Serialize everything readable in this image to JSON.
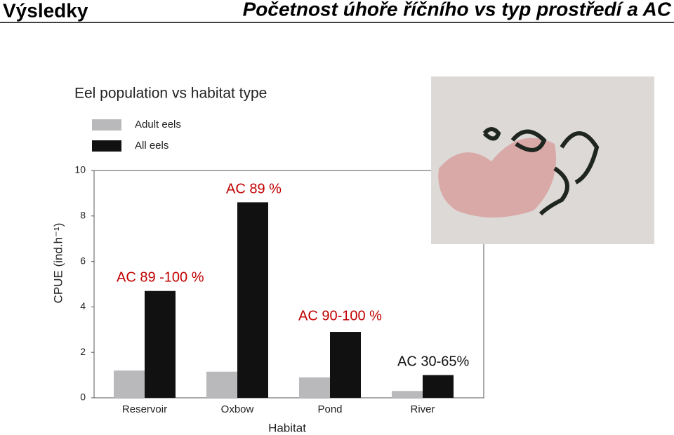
{
  "slide_title": "Výsledky",
  "slide_subtitle": "Početnost úhoře říčního vs typ prostředí a AC",
  "chart_data": {
    "type": "bar",
    "title": "Eel population vs habitat type",
    "x_label": "Habitat",
    "y_label": "CPUE (ind.h⁻¹)",
    "categories": [
      "Reservoir",
      "Oxbow",
      "Pond",
      "River"
    ],
    "series": [
      {
        "name": "Adult eels",
        "color": "#b9b9bb",
        "values": [
          1.2,
          1.15,
          0.9,
          0.3
        ]
      },
      {
        "name": "All eels",
        "color": "#111111",
        "values": [
          4.7,
          8.6,
          2.9,
          1.0
        ]
      }
    ],
    "ylim": [
      0,
      10
    ],
    "yticks": [
      0,
      2,
      4,
      6,
      8,
      10
    ],
    "annotations": [
      {
        "text": "AC 89 -100 %",
        "color": "#c00000"
      },
      {
        "text": "AC 89 %",
        "color": "#c00000"
      },
      {
        "text": "AC 90-100 %",
        "color": "#c00000"
      },
      {
        "text": "AC 30-65%",
        "color": "#111111"
      }
    ]
  }
}
